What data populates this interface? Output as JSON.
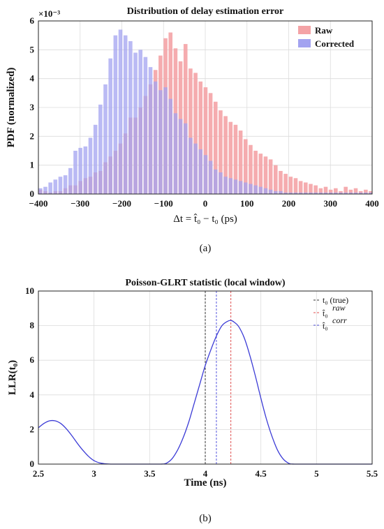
{
  "chart_data": [
    {
      "type": "bar",
      "title": "Distribution of delay estimation error",
      "xlabel": "Δt = t̂₀ − t₀ (ps)",
      "ylabel": "PDF (normalized)",
      "y_exponent_label": "×10⁻³",
      "xlim": [
        -400,
        400
      ],
      "ylim": [
        0,
        6
      ],
      "xticks": [
        -400,
        -300,
        -200,
        -100,
        0,
        100,
        200,
        300,
        400
      ],
      "yticks": [
        0,
        1,
        2,
        3,
        4,
        5,
        6
      ],
      "grid": true,
      "legend_position": "top-right",
      "bin_width_ps": 12,
      "bin_start_ps": -400,
      "series": [
        {
          "name": "Raw",
          "color": "#f4a3a6",
          "values": [
            0.15,
            0.1,
            0.05,
            0.1,
            0.1,
            0.2,
            0.3,
            0.3,
            0.45,
            0.55,
            0.6,
            0.75,
            0.8,
            1.1,
            1.3,
            1.5,
            1.75,
            2.1,
            2.65,
            2.65,
            3.0,
            3.4,
            3.8,
            4.3,
            4.8,
            5.4,
            5.6,
            5.05,
            4.6,
            5.2,
            4.35,
            4.2,
            3.9,
            3.7,
            3.5,
            3.2,
            2.9,
            2.7,
            2.5,
            2.4,
            2.2,
            1.9,
            1.7,
            1.5,
            1.4,
            1.3,
            1.2,
            1.0,
            0.8,
            0.7,
            0.6,
            0.55,
            0.45,
            0.4,
            0.35,
            0.3,
            0.2,
            0.25,
            0.15,
            0.2,
            0.1,
            0.25,
            0.15,
            0.2,
            0.1,
            0.15,
            0.1
          ]
        },
        {
          "name": "Corrected",
          "color": "#a3a3f0",
          "values": [
            0.2,
            0.25,
            0.4,
            0.5,
            0.6,
            0.65,
            0.9,
            1.5,
            1.6,
            1.65,
            1.95,
            2.4,
            3.1,
            3.8,
            4.7,
            5.5,
            5.7,
            5.5,
            5.3,
            4.9,
            5.0,
            4.75,
            4.4,
            3.9,
            3.6,
            3.7,
            3.3,
            2.8,
            2.6,
            2.45,
            1.95,
            1.75,
            1.55,
            1.35,
            1.15,
            0.85,
            0.75,
            0.6,
            0.55,
            0.5,
            0.45,
            0.4,
            0.35,
            0.3,
            0.25,
            0.2,
            0.15,
            0.1,
            0.1,
            0.05,
            0.05,
            0.05,
            0.05,
            0.05,
            0.05,
            0.05,
            0.05,
            0.05,
            0.05,
            0.05,
            0.05,
            0.05,
            0.05,
            0.05,
            0.05,
            0.05,
            0.05
          ]
        }
      ]
    },
    {
      "type": "line",
      "title": "Poisson-GLRT statistic (local window)",
      "xlabel": "Time (ns)",
      "ylabel": "LLR(t₀)",
      "xlim": [
        2.5,
        5.5
      ],
      "ylim": [
        0,
        10
      ],
      "xticks": [
        2.5,
        3,
        3.5,
        4,
        4.5,
        5,
        5.5
      ],
      "yticks": [
        0,
        2,
        4,
        6,
        8,
        10
      ],
      "grid": true,
      "legend_position": "top-right",
      "series": [
        {
          "name": "LLR",
          "color": "#3b3bd6",
          "x": [
            2.5,
            2.55,
            2.6,
            2.65,
            2.7,
            2.75,
            2.8,
            2.85,
            2.9,
            2.95,
            3.0,
            3.05,
            3.1,
            3.15,
            3.2,
            3.3,
            3.4,
            3.5,
            3.6,
            3.65,
            3.7,
            3.75,
            3.8,
            3.85,
            3.9,
            3.95,
            4.0,
            4.05,
            4.1,
            4.15,
            4.2,
            4.23,
            4.26,
            4.3,
            4.35,
            4.4,
            4.45,
            4.5,
            4.55,
            4.6,
            4.65,
            4.7,
            4.75,
            4.8,
            5.0,
            5.5
          ],
          "y": [
            2.1,
            2.35,
            2.5,
            2.5,
            2.35,
            2.05,
            1.65,
            1.2,
            0.8,
            0.45,
            0.2,
            0.07,
            0.02,
            0.0,
            0.0,
            0.0,
            0.0,
            0.0,
            0.0,
            0.05,
            0.3,
            0.8,
            1.5,
            2.4,
            3.5,
            4.6,
            5.7,
            6.6,
            7.4,
            8.0,
            8.25,
            8.3,
            8.2,
            7.95,
            7.3,
            6.3,
            5.1,
            3.8,
            2.6,
            1.6,
            0.8,
            0.3,
            0.05,
            0.0,
            0.0,
            0.0
          ]
        }
      ],
      "vlines": [
        {
          "name": "t₀ (true)",
          "x": 4.0,
          "color": "#333333",
          "style": "dashed"
        },
        {
          "name": "t̂₀ raw",
          "x": 4.23,
          "color": "#e05050",
          "style": "dashed"
        },
        {
          "name": "t̂₀ corr",
          "x": 4.1,
          "color": "#5555dd",
          "style": "dashed"
        }
      ]
    }
  ],
  "captions": {
    "a": "(a)",
    "b": "(b)"
  },
  "legend_b": {
    "true_label": "t₀ (true)",
    "raw_label": "t̂₀",
    "raw_sup": "raw",
    "corr_label": "t̂₀",
    "corr_sup": "corr"
  }
}
